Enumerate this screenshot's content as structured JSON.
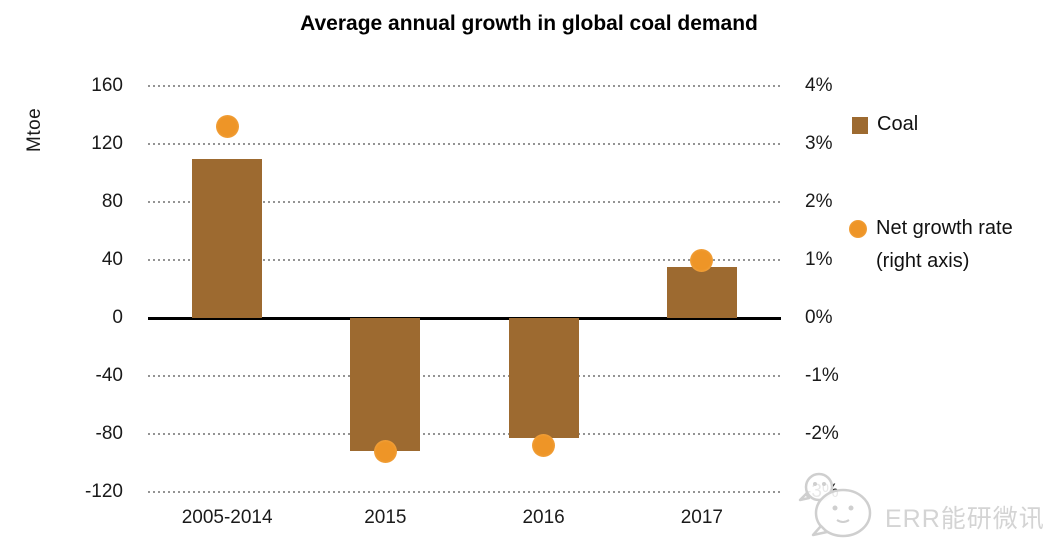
{
  "title": "Average annual growth in global coal demand",
  "left_axis_title": "Mtoe",
  "legend": {
    "coal_label": "Coal",
    "rate_label": "Net growth rate (right axis)"
  },
  "watermark_text": "ERR能研微讯",
  "colors": {
    "bar": "#9d6a30",
    "dot": "#ee9527",
    "dot_edge": "#f6b158",
    "grid": "#949494",
    "zero_line": "#000000",
    "text": "#1a1a1a",
    "watermark": "#d4d4d4"
  },
  "chart_data": {
    "type": "bar",
    "title": "Average annual growth in global coal demand",
    "categories": [
      "2005-2014",
      "2015",
      "2016",
      "2017"
    ],
    "series": [
      {
        "name": "Coal",
        "type": "bar",
        "axis": "left",
        "unit": "Mtoe",
        "values": [
          110,
          -92,
          -83,
          35
        ]
      },
      {
        "name": "Net growth rate (right axis)",
        "type": "scatter",
        "axis": "right",
        "unit": "%",
        "values": [
          3.3,
          -2.3,
          -2.2,
          1.0
        ]
      }
    ],
    "left_axis": {
      "label": "Mtoe",
      "min": -120,
      "max": 160,
      "tick_step": 40,
      "ticks": [
        160,
        120,
        80,
        40,
        0,
        -40,
        -80,
        -120
      ]
    },
    "right_axis": {
      "min": -3,
      "max": 4,
      "tick_step": 1,
      "tick_labels": [
        "4%",
        "3%",
        "2%",
        "1%",
        "0%",
        "-1%",
        "-2%",
        "-3%"
      ]
    },
    "grid": "dotted-horizontal",
    "legend_position": "right"
  }
}
